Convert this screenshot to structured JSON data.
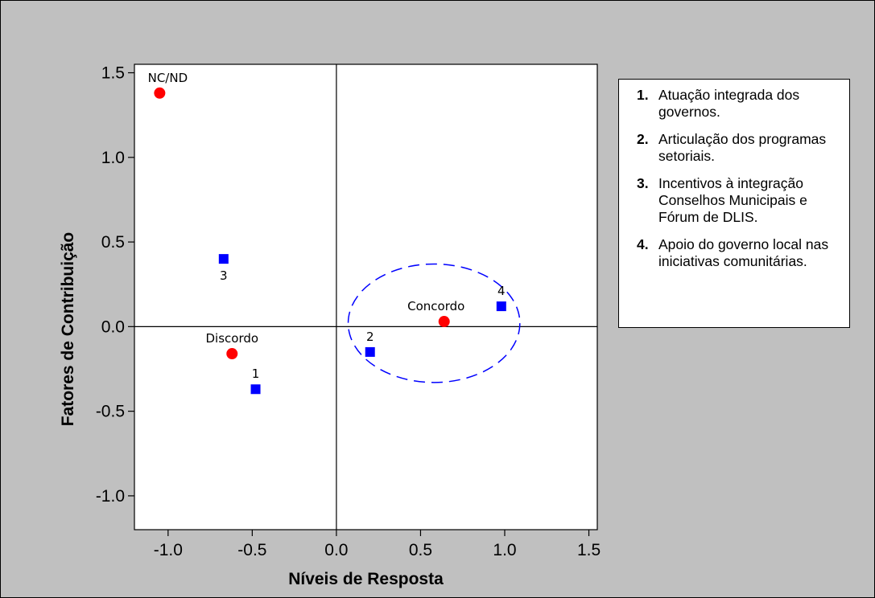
{
  "chart_data": {
    "type": "scatter",
    "title": "",
    "xlabel": "Níveis de Resposta",
    "ylabel": "Fatores de Contribuição",
    "xlim": [
      -1.2,
      1.55
    ],
    "ylim": [
      -1.2,
      1.55
    ],
    "x_ticks": [
      "-1.0",
      "-0.5",
      "0.0",
      "0.5",
      "1.0",
      "1.5"
    ],
    "y_ticks": [
      "1.5",
      "1.0",
      "0.5",
      "0.0",
      "-0.5",
      "-1.0"
    ],
    "x_tick_values": [
      -1.0,
      -0.5,
      0.0,
      0.5,
      1.0,
      1.5
    ],
    "y_tick_values": [
      1.5,
      1.0,
      0.5,
      0.0,
      -0.5,
      -1.0
    ],
    "grid": false,
    "reference_lines": {
      "x": 0,
      "y": 0
    },
    "series": [
      {
        "marker": "circle",
        "color": "#ff0000",
        "points": [
          {
            "label": "NC/ND",
            "x": -1.05,
            "y": 1.38
          },
          {
            "label": "Discordo",
            "x": -0.62,
            "y": -0.16
          },
          {
            "label": "Concordo",
            "x": 0.64,
            "y": 0.03
          }
        ]
      },
      {
        "marker": "square",
        "color": "#0000ff",
        "points": [
          {
            "label": "1",
            "x": -0.48,
            "y": -0.37
          },
          {
            "label": "2",
            "x": 0.2,
            "y": -0.15
          },
          {
            "label": "3",
            "x": -0.67,
            "y": 0.4
          },
          {
            "label": "4",
            "x": 0.98,
            "y": 0.12
          }
        ]
      }
    ],
    "annotation_ellipse": {
      "cx": 0.58,
      "cy": 0.02,
      "rx": 0.51,
      "ry": 0.35,
      "color": "#0000ff",
      "style": "dashed"
    },
    "legend_placement": "right"
  },
  "colors": {
    "page_background": "#c0c0c0",
    "plot_background": "#ffffff",
    "circle_marker": "#ff0000",
    "square_marker": "#0000ff"
  },
  "legend": {
    "items": [
      {
        "number": "1.",
        "text": "Atuação integrada dos governos."
      },
      {
        "number": "2.",
        "text": "Articulação dos programas setoriais."
      },
      {
        "number": "3.",
        "text": "Incentivos à integração Conselhos Municipais e Fórum de DLIS."
      },
      {
        "number": "4.",
        "text": "Apoio do governo local nas iniciativas comunitárias."
      }
    ]
  }
}
